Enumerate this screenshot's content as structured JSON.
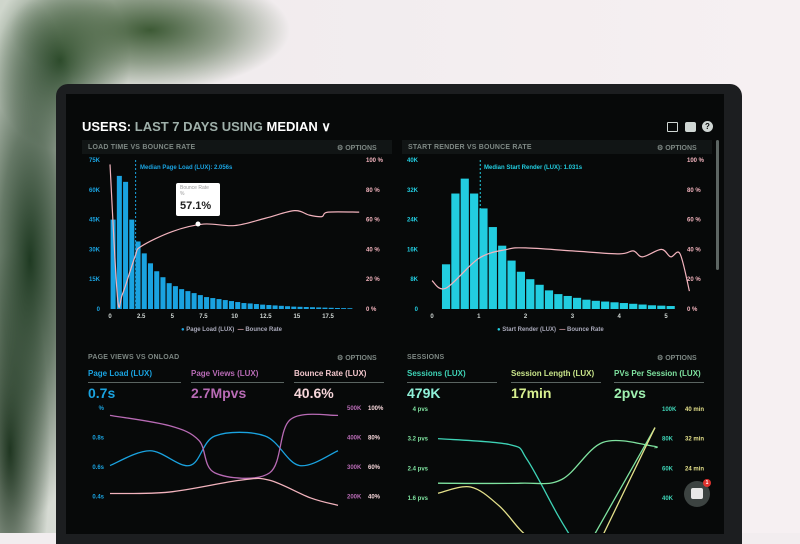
{
  "header": {
    "prefix": "USERS:",
    "range": "LAST 7 DAYS",
    "using": "USING",
    "stat": "MEDIAN",
    "chevron": "∨"
  },
  "header_icons": [
    "monitor-icon",
    "image-icon",
    "help-icon"
  ],
  "options_label": "⚙ OPTIONS",
  "panels": {
    "load_time": {
      "title": "LOAD TIME VS BOUNCE RATE",
      "median_label": "Median Page Load (LUX): 2.056s",
      "tooltip": {
        "title": "Bounce Rate",
        "unit": "%",
        "value": "57.1%"
      },
      "legend": [
        "Page Load (LUX)",
        "Bounce Rate"
      ]
    },
    "start_render": {
      "title": "START RENDER VS BOUNCE RATE",
      "median_label": "Median Start Render (LUX): 1.031s",
      "legend": [
        "Start Render (LUX)",
        "Bounce Rate"
      ]
    },
    "page_views": {
      "title": "PAGE VIEWS VS ONLOAD",
      "metrics": [
        {
          "label": "Page Load (LUX)",
          "value": "0.7s"
        },
        {
          "label": "Page Views (LUX)",
          "value": "2.7Mpvs"
        },
        {
          "label": "Bounce Rate (LUX)",
          "value": "40.6%"
        }
      ]
    },
    "sessions": {
      "title": "SESSIONS",
      "metrics": [
        {
          "label": "Sessions (LUX)",
          "value": "479K"
        },
        {
          "label": "Session Length (LUX)",
          "value": "17min"
        },
        {
          "label": "PVs Per Session (LUX)",
          "value": "2pvs"
        }
      ]
    }
  },
  "chat": {
    "badge": "1"
  },
  "colors": {
    "blue": "#1aa3e0",
    "cyan": "#22cde0",
    "pink": "#f2b3bd",
    "purple": "#b86bb5",
    "teal": "#3ed3b6",
    "green": "#7fe3a0",
    "yellow": "#e3e08a"
  },
  "chart_data": [
    {
      "type": "bar",
      "title": "LOAD TIME VS BOUNCE RATE",
      "bin_width": 0.5,
      "x_ticks": [
        "0",
        "2.5",
        "5",
        "7.5",
        "10",
        "12.5",
        "15",
        "17.5"
      ],
      "y_ticks_left": [
        "0",
        "15K",
        "30K",
        "45K",
        "60K",
        "75K"
      ],
      "y_ticks_right": [
        "0 %",
        "20 %",
        "40 %",
        "60 %",
        "80 %",
        "100 %"
      ],
      "ylim_left": [
        0,
        75000
      ],
      "ylim_right": [
        0,
        100
      ],
      "median_x": 2.056,
      "series": [
        {
          "name": "Page Load (LUX)",
          "x": [
            0,
            0.5,
            1,
            1.5,
            2,
            2.5,
            3,
            3.5,
            4,
            4.5,
            5,
            5.5,
            6,
            6.5,
            7,
            7.5,
            8,
            8.5,
            9,
            9.5,
            10,
            10.5,
            11,
            11.5,
            12,
            12.5,
            13,
            13.5,
            14,
            14.5,
            15,
            15.5,
            16,
            16.5,
            17,
            17.5,
            18,
            18.5,
            19
          ],
          "values": [
            45000,
            67000,
            64000,
            45000,
            34000,
            28000,
            23000,
            19000,
            16000,
            13000,
            11500,
            10000,
            9000,
            8000,
            7000,
            6000,
            5500,
            5000,
            4500,
            4000,
            3500,
            3000,
            2800,
            2500,
            2200,
            2000,
            1800,
            1600,
            1400,
            1200,
            1100,
            1000,
            900,
            800,
            700,
            600,
            500,
            450,
            400
          ]
        },
        {
          "name": "Bounce Rate",
          "type": "line",
          "x": [
            0,
            0.6,
            1,
            2,
            2.5,
            5,
            7.5,
            10,
            12.5,
            14.8,
            16,
            17,
            17.5,
            20
          ],
          "values": [
            97,
            8,
            10,
            35,
            42,
            52,
            57,
            56,
            61,
            66,
            63,
            62,
            65,
            65
          ]
        }
      ]
    },
    {
      "type": "bar",
      "title": "START RENDER VS BOUNCE RATE",
      "bin_width": 0.2,
      "x_ticks": [
        "0",
        "1",
        "2",
        "3",
        "4",
        "5"
      ],
      "y_ticks_left": [
        "0",
        "8K",
        "16K",
        "24K",
        "32K",
        "40K"
      ],
      "y_ticks_right": [
        "0 %",
        "20 %",
        "40 %",
        "60 %",
        "80 %",
        "100 %"
      ],
      "ylim_left": [
        0,
        40000
      ],
      "ylim_right": [
        0,
        100
      ],
      "median_x": 1.031,
      "series": [
        {
          "name": "Start Render (LUX)",
          "x": [
            0.2,
            0.4,
            0.6,
            0.8,
            1,
            1.2,
            1.4,
            1.6,
            1.8,
            2,
            2.2,
            2.4,
            2.6,
            2.8,
            3,
            3.2,
            3.4,
            3.6,
            3.8,
            4,
            4.2,
            4.4,
            4.6,
            4.8,
            5
          ],
          "values": [
            12000,
            31000,
            35000,
            31000,
            27000,
            22000,
            17000,
            13000,
            10000,
            8000,
            6500,
            5000,
            4000,
            3500,
            3000,
            2500,
            2200,
            2000,
            1800,
            1600,
            1400,
            1200,
            1000,
            900,
            800
          ]
        },
        {
          "name": "Bounce Rate",
          "type": "line",
          "x": [
            0,
            0.3,
            1,
            1.6,
            2,
            3,
            4,
            4.3,
            4.5,
            4.9,
            5.1,
            5.3,
            5.5
          ],
          "values": [
            19,
            14,
            34,
            40,
            41,
            39,
            37,
            39,
            35,
            40,
            35,
            37,
            12
          ]
        }
      ]
    },
    {
      "type": "line",
      "title": "PAGE VIEWS VS ONLOAD",
      "y_ticks_left": [
        "%",
        "0.8s",
        "0.6s",
        "0.4s"
      ],
      "y_ticks_right_1": [
        "500K",
        "400K",
        "300K",
        "200K"
      ],
      "y_ticks_right_2": [
        "100%",
        "80%",
        "60%",
        "40%"
      ],
      "series": [
        {
          "name": "Page Load (LUX)",
          "x": [
            0,
            1.75,
            3.5,
            4.6,
            6.8,
            8.3,
            10
          ],
          "values": [
            0.6,
            0.7,
            0.6,
            0.8,
            0.8,
            0.6,
            0.7
          ]
        },
        {
          "name": "Page Views (LUX)",
          "x": [
            0,
            2.6,
            3.9,
            4.6,
            7,
            7.9,
            10
          ],
          "values": [
            470000,
            435000,
            385000,
            275000,
            275000,
            455000,
            470000
          ]
        },
        {
          "name": "Bounce Rate (LUX)",
          "x": [
            0,
            2.6,
            5.7,
            7,
            8.8,
            10
          ],
          "values": [
            41,
            42,
            50,
            50,
            38,
            33
          ]
        }
      ]
    },
    {
      "type": "line",
      "title": "SESSIONS",
      "y_ticks_left": [
        "4 pvs",
        "3.2 pvs",
        "2.4 pvs",
        "1.6 pvs"
      ],
      "y_ticks_right_1": [
        "100K",
        "80K",
        "60K",
        "40K"
      ],
      "y_ticks_right_2": [
        "40 min",
        "32 min",
        "24 min"
      ],
      "series": [
        {
          "name": "Sessions (LUX)",
          "x": [
            0,
            3.3,
            4.1,
            5.5,
            6.2
          ],
          "values": [
            80000,
            76000,
            66000,
            29000,
            12000
          ]
        },
        {
          "name": "Session Length (LUX)",
          "x": [
            0,
            3.8,
            5.7,
            7.6,
            9.9,
            10
          ],
          "values": [
            20,
            20,
            21,
            31,
            30,
            29.5
          ]
        },
        {
          "name": "PVs Per Session (LUX)",
          "x": [
            0,
            1.5,
            2.8,
            3.8,
            4.8
          ],
          "values": [
            1.73,
            1.9,
            1.4,
            0.74,
            0.2
          ]
        },
        {
          "name": "Session Length (LUX)",
          "x": [
            7.1,
            10
          ],
          "values": [
            5,
            35
          ]
        },
        {
          "name": "PVs Per Session (LUX)",
          "x": [
            7.6,
            10
          ],
          "values": [
            0.6,
            3.5
          ]
        }
      ]
    }
  ]
}
